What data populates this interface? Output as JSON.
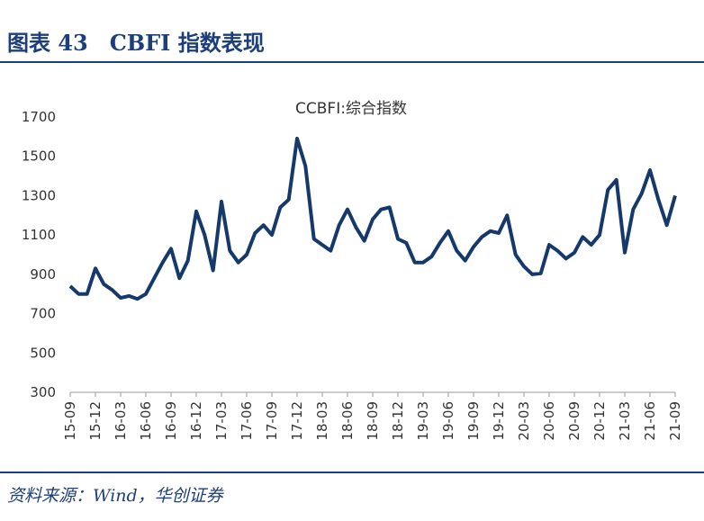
{
  "header": {
    "title": "图表 43　CBFI 指数表现"
  },
  "chart_data": {
    "type": "line",
    "title": "CCBFI:综合指数",
    "categories": [
      "15-09",
      null,
      null,
      "15-12",
      null,
      null,
      "16-03",
      null,
      null,
      "16-06",
      null,
      null,
      "16-09",
      null,
      null,
      "16-12",
      null,
      null,
      "17-03",
      null,
      null,
      "17-06",
      null,
      null,
      "17-09",
      null,
      null,
      "17-12",
      null,
      null,
      "18-03",
      null,
      null,
      "18-06",
      null,
      null,
      "18-09",
      null,
      null,
      "18-12",
      null,
      null,
      "19-03",
      null,
      null,
      "19-06",
      null,
      null,
      "19-09",
      null,
      null,
      "19-12",
      null,
      null,
      "20-03",
      null,
      null,
      "20-06",
      null,
      null,
      "20-09",
      null,
      null,
      "20-12",
      null,
      null,
      "21-03",
      null,
      null,
      "21-06",
      null,
      null,
      "21-09"
    ],
    "series": [
      {
        "name": "CCBFI:综合指数",
        "color": "#15396b",
        "values": [
          840,
          800,
          800,
          930,
          850,
          820,
          780,
          790,
          775,
          800,
          880,
          960,
          1030,
          880,
          970,
          1220,
          1100,
          920,
          1270,
          1020,
          960,
          1000,
          1110,
          1150,
          1100,
          1240,
          1280,
          1590,
          1450,
          1080,
          1050,
          1020,
          1150,
          1230,
          1140,
          1070,
          1180,
          1230,
          1240,
          1080,
          1060,
          960,
          960,
          990,
          1060,
          1120,
          1020,
          970,
          1040,
          1090,
          1120,
          1110,
          1200,
          1000,
          940,
          900,
          905,
          1050,
          1020,
          980,
          1010,
          1090,
          1050,
          1100,
          1330,
          1380,
          1010,
          1230,
          1310,
          1430,
          1280,
          1150,
          1300
        ]
      }
    ],
    "ylim": [
      300,
      1700
    ],
    "yticks": [
      300,
      500,
      700,
      900,
      1100,
      1300,
      1500,
      1700
    ],
    "grid": false
  },
  "footer": {
    "source": "资料来源：Wind，华创证券"
  }
}
